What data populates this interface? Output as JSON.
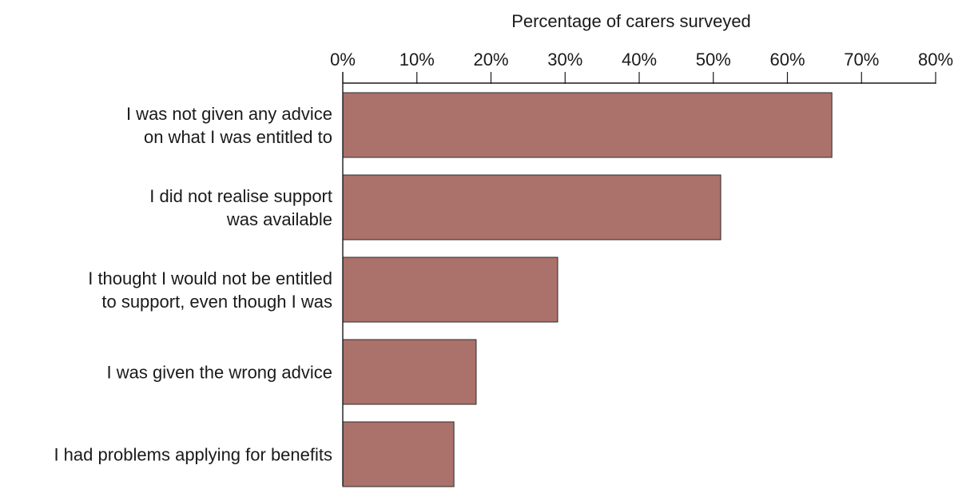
{
  "chart_data": {
    "type": "bar",
    "orientation": "horizontal",
    "title": "",
    "xlabel": "Percentage of carers surveyed",
    "xlabel_position": "top",
    "ylabel": "",
    "categories": [
      [
        "I was not given any advice",
        "on what I was entitled to"
      ],
      [
        "I did not realise support",
        "was available"
      ],
      [
        "I thought I would not be entitled",
        "to support, even though I was"
      ],
      [
        "I was given the wrong advice"
      ],
      [
        "I had problems applying for benefits"
      ]
    ],
    "values": [
      66,
      51,
      29,
      18,
      15
    ],
    "xlim": [
      0,
      80
    ],
    "xticks": [
      0,
      10,
      20,
      30,
      40,
      50,
      60,
      70,
      80
    ],
    "xtick_labels": [
      "0%",
      "10%",
      "20%",
      "30%",
      "40%",
      "50%",
      "60%",
      "70%",
      "80%"
    ],
    "grid": false,
    "legend": "none",
    "colors": {
      "bar_fill": "#ab716b",
      "bar_stroke": "#2b2b2b",
      "axis": "#1a1a1a"
    }
  }
}
